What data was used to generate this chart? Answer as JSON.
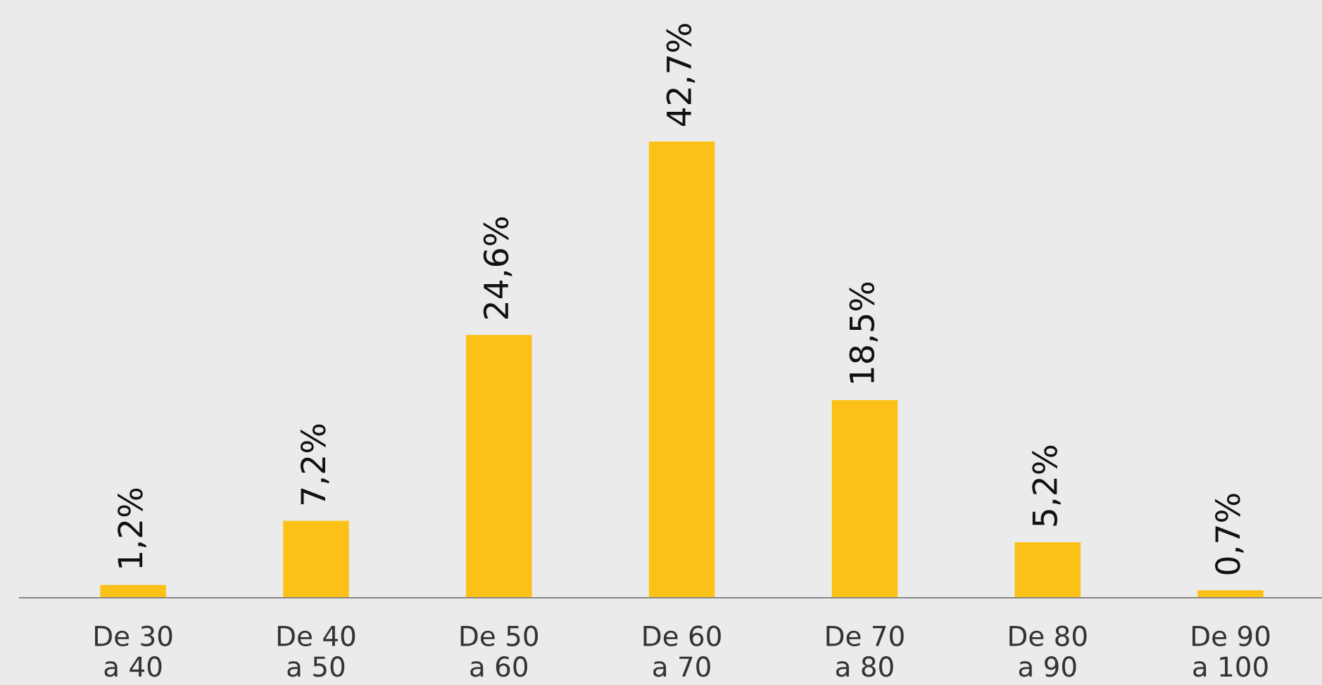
{
  "chart_data": {
    "type": "bar",
    "categories": [
      "De 30\na 40",
      "De 40\na 50",
      "De 50\na 60",
      "De 60\na 70",
      "De 70\na 80",
      "De 80\na 90",
      "De 90\na 100"
    ],
    "values": [
      1.2,
      7.2,
      24.6,
      42.7,
      18.5,
      5.2,
      0.7
    ],
    "value_labels": [
      "1,2%",
      "7,2%",
      "24,6%",
      "42,7%",
      "18,5%",
      "5,2%",
      "0,7%"
    ],
    "color": "#fcc117",
    "grid": false,
    "legend": false,
    "tick_labels": "x"
  }
}
